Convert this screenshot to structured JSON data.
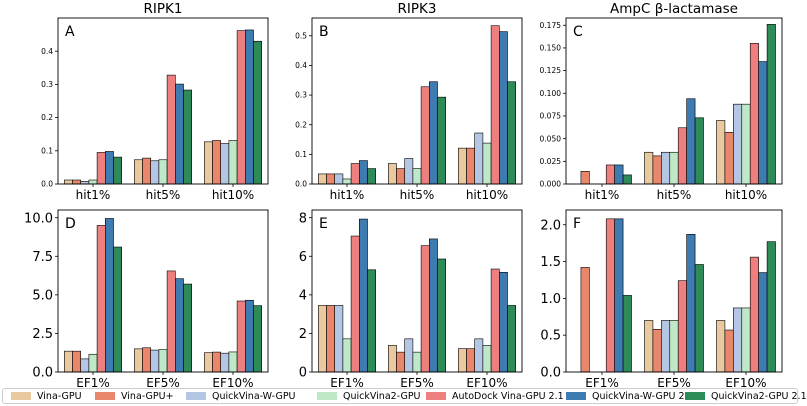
{
  "colors": {
    "Vina-GPU": "#e8c9a0",
    "Vina-GPU+": "#e8876c",
    "QuickVina-W-GPU": "#b3c6e3",
    "QuickVina2-GPU": "#bfe8c8",
    "AutoDock Vina-GPU 2.1": "#ee7f7f",
    "QuickVina-W-GPU 2.1": "#3d7bb0",
    "QuickVina2-GPU 2.1": "#2e8a57"
  },
  "legend": [
    "Vina-GPU",
    "Vina-GPU+",
    "QuickVina-W-GPU",
    "QuickVina2-GPU",
    "AutoDock Vina-GPU 2.1",
    "QuickVina-W-GPU 2.1",
    "QuickVina2-GPU 2.1"
  ],
  "chart_data": [
    {
      "id": "A",
      "type": "bar",
      "title": "RIPK1",
      "categories": [
        "hit1%",
        "hit5%",
        "hit10%"
      ],
      "ylim": [
        0,
        0.5
      ],
      "yticks": [
        "0.0",
        "0.1",
        "0.2",
        "0.3",
        "0.4"
      ],
      "ytick_values": [
        0,
        0.1,
        0.2,
        0.3,
        0.4
      ],
      "series": [
        {
          "name": "Vina-GPU",
          "values": [
            0.012,
            0.073,
            0.127
          ]
        },
        {
          "name": "Vina-GPU+",
          "values": [
            0.012,
            0.078,
            0.131
          ]
        },
        {
          "name": "QuickVina-W-GPU",
          "values": [
            0.008,
            0.07,
            0.122
          ]
        },
        {
          "name": "QuickVina2-GPU",
          "values": [
            0.012,
            0.073,
            0.131
          ]
        },
        {
          "name": "AutoDock Vina-GPU 2.1",
          "values": [
            0.095,
            0.328,
            0.462
          ]
        },
        {
          "name": "QuickVina-W-GPU 2.1",
          "values": [
            0.098,
            0.301,
            0.464
          ]
        },
        {
          "name": "QuickVina2-GPU 2.1",
          "values": [
            0.081,
            0.283,
            0.43
          ]
        }
      ]
    },
    {
      "id": "B",
      "type": "bar",
      "title": "RIPK3",
      "categories": [
        "hit1%",
        "hit5%",
        "hit10%"
      ],
      "ylim": [
        0,
        0.56
      ],
      "yticks": [
        "0.0",
        "0.1",
        "0.2",
        "0.3",
        "0.4",
        "0.5"
      ],
      "ytick_values": [
        0,
        0.1,
        0.2,
        0.3,
        0.4,
        0.5
      ],
      "series": [
        {
          "name": "Vina-GPU",
          "values": [
            0.034,
            0.069,
            0.121
          ]
        },
        {
          "name": "Vina-GPU+",
          "values": [
            0.034,
            0.052,
            0.121
          ]
        },
        {
          "name": "QuickVina-W-GPU",
          "values": [
            0.034,
            0.086,
            0.172
          ]
        },
        {
          "name": "QuickVina2-GPU",
          "values": [
            0.017,
            0.052,
            0.138
          ]
        },
        {
          "name": "AutoDock Vina-GPU 2.1",
          "values": [
            0.069,
            0.328,
            0.534
          ]
        },
        {
          "name": "QuickVina-W-GPU 2.1",
          "values": [
            0.079,
            0.345,
            0.514
          ]
        },
        {
          "name": "QuickVina2-GPU 2.1",
          "values": [
            0.052,
            0.293,
            0.345
          ]
        }
      ]
    },
    {
      "id": "C",
      "type": "bar",
      "title": "AmpC β-lactamase",
      "categories": [
        "hit1%",
        "hit5%",
        "hit10%"
      ],
      "ylim": [
        0,
        0.183
      ],
      "yticks": [
        "0.000",
        "0.025",
        "0.050",
        "0.075",
        "0.100",
        "0.125",
        "0.150",
        "0.175"
      ],
      "ytick_values": [
        0,
        0.025,
        0.05,
        0.075,
        0.1,
        0.125,
        0.15,
        0.175
      ],
      "series": [
        {
          "name": "Vina-GPU",
          "values": [
            0,
            0.035,
            0.07
          ]
        },
        {
          "name": "Vina-GPU+",
          "values": [
            0.014,
            0.031,
            0.057
          ]
        },
        {
          "name": "QuickVina-W-GPU",
          "values": [
            0,
            0.035,
            0.088
          ]
        },
        {
          "name": "QuickVina2-GPU",
          "values": [
            0,
            0.035,
            0.088
          ]
        },
        {
          "name": "AutoDock Vina-GPU 2.1",
          "values": [
            0.021,
            0.062,
            0.155
          ]
        },
        {
          "name": "QuickVina-W-GPU 2.1",
          "values": [
            0.021,
            0.094,
            0.135
          ]
        },
        {
          "name": "QuickVina2-GPU 2.1",
          "values": [
            0.01,
            0.073,
            0.176
          ]
        }
      ]
    },
    {
      "id": "D",
      "type": "bar",
      "title": "",
      "categories": [
        "EF1%",
        "EF5%",
        "EF10%"
      ],
      "ylim": [
        0,
        10.5
      ],
      "yticks": [
        "0.0",
        "2.5",
        "5.0",
        "7.5",
        "10.0"
      ],
      "ytick_values": [
        0,
        2.5,
        5,
        7.5,
        10
      ],
      "series": [
        {
          "name": "Vina-GPU",
          "values": [
            1.35,
            1.5,
            1.25
          ]
        },
        {
          "name": "Vina-GPU+",
          "values": [
            1.35,
            1.57,
            1.29
          ]
        },
        {
          "name": "QuickVina-W-GPU",
          "values": [
            0.85,
            1.42,
            1.22
          ]
        },
        {
          "name": "QuickVina2-GPU",
          "values": [
            1.15,
            1.45,
            1.3
          ]
        },
        {
          "name": "AutoDock Vina-GPU 2.1",
          "values": [
            9.5,
            6.55,
            4.6
          ]
        },
        {
          "name": "QuickVina-W-GPU 2.1",
          "values": [
            9.95,
            6.05,
            4.65
          ]
        },
        {
          "name": "QuickVina2-GPU 2.1",
          "values": [
            8.1,
            5.7,
            4.3
          ]
        }
      ]
    },
    {
      "id": "E",
      "type": "bar",
      "title": "",
      "categories": [
        "EF1%",
        "EF5%",
        "EF10%"
      ],
      "ylim": [
        0,
        8.4
      ],
      "yticks": [
        "0",
        "2",
        "4",
        "6",
        "8"
      ],
      "ytick_values": [
        0,
        2,
        4,
        6,
        8
      ],
      "series": [
        {
          "name": "Vina-GPU",
          "values": [
            3.45,
            1.38,
            1.21
          ]
        },
        {
          "name": "Vina-GPU+",
          "values": [
            3.45,
            1.03,
            1.21
          ]
        },
        {
          "name": "QuickVina-W-GPU",
          "values": [
            3.45,
            1.72,
            1.72
          ]
        },
        {
          "name": "QuickVina2-GPU",
          "values": [
            1.72,
            1.03,
            1.38
          ]
        },
        {
          "name": "AutoDock Vina-GPU 2.1",
          "values": [
            7.05,
            6.55,
            5.34
          ]
        },
        {
          "name": "QuickVina-W-GPU 2.1",
          "values": [
            7.93,
            6.9,
            5.17
          ]
        },
        {
          "name": "QuickVina2-GPU 2.1",
          "values": [
            5.3,
            5.86,
            3.45
          ]
        }
      ]
    },
    {
      "id": "F",
      "type": "bar",
      "title": "",
      "categories": [
        "EF1%",
        "EF5%",
        "EF10%"
      ],
      "ylim": [
        0,
        2.2
      ],
      "yticks": [
        "0.0",
        "0.5",
        "1.0",
        "1.5",
        "2.0"
      ],
      "ytick_values": [
        0,
        0.5,
        1,
        1.5,
        2
      ],
      "series": [
        {
          "name": "Vina-GPU",
          "values": [
            0,
            0.7,
            0.7
          ]
        },
        {
          "name": "Vina-GPU+",
          "values": [
            1.42,
            0.58,
            0.57
          ]
        },
        {
          "name": "QuickVina-W-GPU",
          "values": [
            0,
            0.7,
            0.87
          ]
        },
        {
          "name": "QuickVina2-GPU",
          "values": [
            0,
            0.7,
            0.87
          ]
        },
        {
          "name": "AutoDock Vina-GPU 2.1",
          "values": [
            2.08,
            1.24,
            1.56
          ]
        },
        {
          "name": "QuickVina-W-GPU 2.1",
          "values": [
            2.08,
            1.87,
            1.35
          ]
        },
        {
          "name": "QuickVina2-GPU 2.1",
          "values": [
            1.04,
            1.46,
            1.77
          ]
        }
      ]
    }
  ]
}
